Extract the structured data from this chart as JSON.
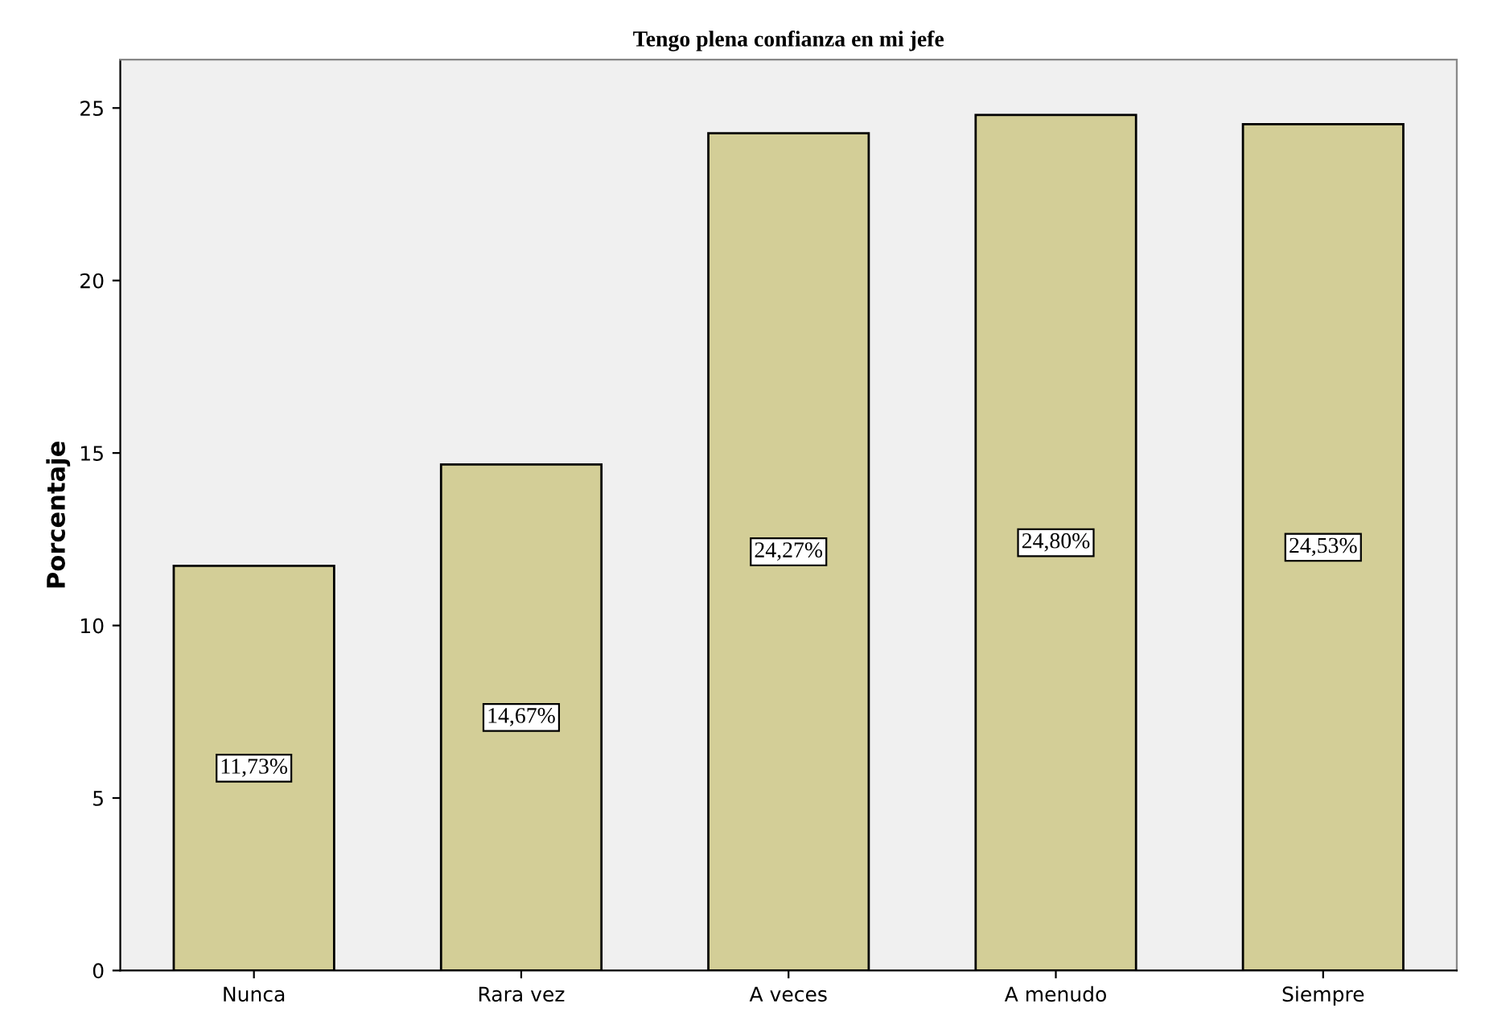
{
  "chart_data": {
    "type": "bar",
    "title": "Tengo plena confianza en mi jefe",
    "ylabel": "Porcentaje",
    "categories": [
      "Nunca",
      "Rara vez",
      "A veces",
      "A menudo",
      "Siempre"
    ],
    "values": [
      11.73,
      14.67,
      24.27,
      24.8,
      24.53
    ],
    "value_labels": [
      "11,73%",
      "14,67%",
      "24,27%",
      "24,80%",
      "24,53%"
    ],
    "color": "#d3ce97",
    "ylim": [
      0,
      26.4
    ],
    "yticks": [
      0,
      5,
      10,
      15,
      20,
      25
    ],
    "grid": false
  }
}
